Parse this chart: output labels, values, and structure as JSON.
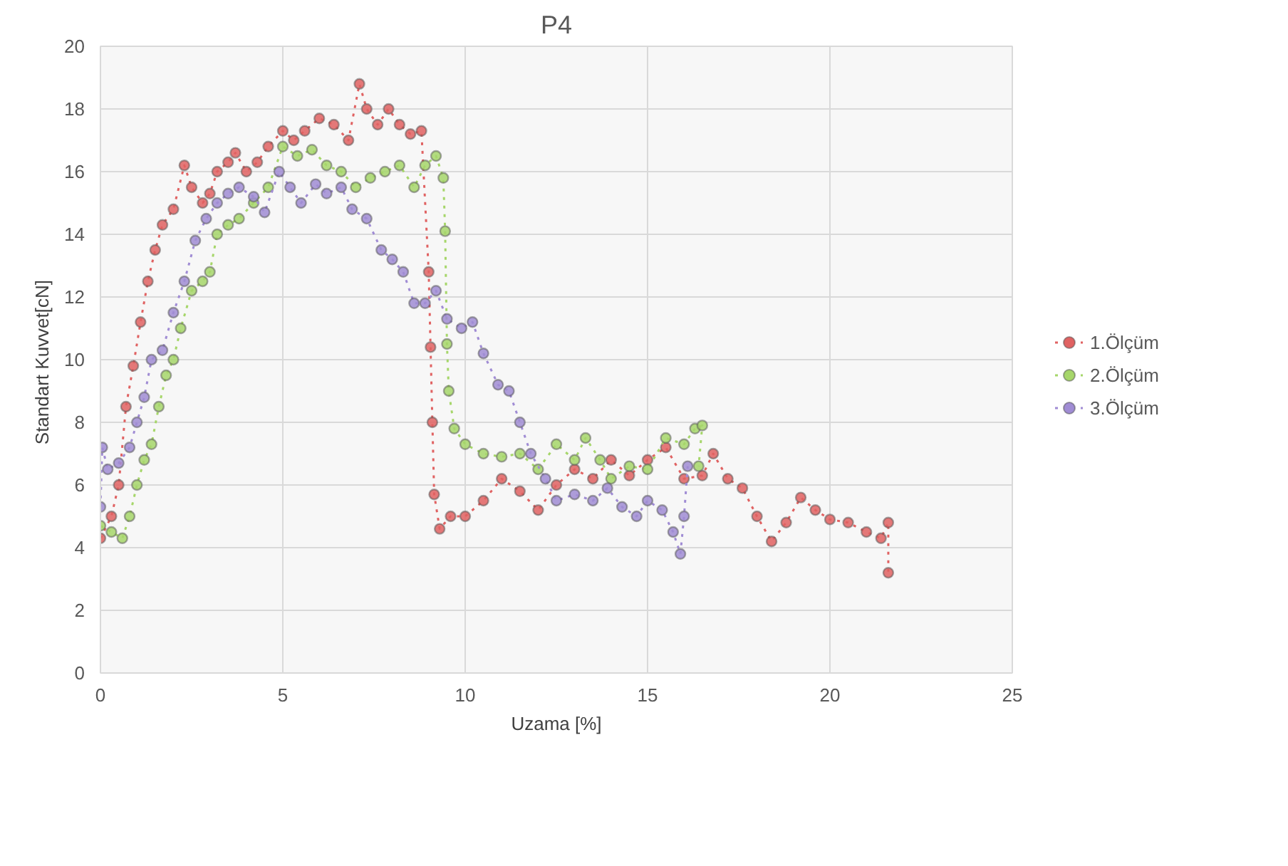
{
  "chart_data": {
    "type": "line",
    "title": "P4",
    "xlabel": "Uzama [%]",
    "ylabel": "Standart  Kuvvet[cN]",
    "xlim": [
      0,
      25
    ],
    "xticks": [
      0,
      5,
      10,
      15,
      20,
      25
    ],
    "ylim": [
      0,
      20
    ],
    "yticks": [
      0,
      2,
      4,
      6,
      8,
      10,
      12,
      14,
      16,
      18,
      20
    ],
    "grid": true,
    "legend": "right",
    "marker": "circle",
    "line_style": "dotted",
    "series": [
      {
        "name": "1.Ölçüm",
        "color": "#e06262",
        "x": [
          0,
          0.3,
          0.5,
          0.7,
          0.9,
          1.1,
          1.3,
          1.5,
          1.7,
          2.0,
          2.3,
          2.5,
          2.8,
          3.0,
          3.2,
          3.5,
          3.7,
          4.0,
          4.3,
          4.6,
          5.0,
          5.3,
          5.6,
          6.0,
          6.4,
          6.8,
          7.1,
          7.3,
          7.6,
          7.9,
          8.2,
          8.5,
          8.8,
          9.0,
          9.05,
          9.1,
          9.15,
          9.3,
          9.6,
          10.0,
          10.5,
          11.0,
          11.5,
          12.0,
          12.5,
          13.0,
          13.5,
          14.0,
          14.5,
          15.0,
          15.5,
          16.0,
          16.5,
          16.8,
          17.2,
          17.6,
          18.0,
          18.4,
          18.8,
          19.2,
          19.6,
          20.0,
          20.5,
          21.0,
          21.4,
          21.6,
          21.6
        ],
        "values": [
          4.3,
          5.0,
          6.0,
          8.5,
          9.8,
          11.2,
          12.5,
          13.5,
          14.3,
          14.8,
          16.2,
          15.5,
          15.0,
          15.3,
          16.0,
          16.3,
          16.6,
          16.0,
          16.3,
          16.8,
          17.3,
          17.0,
          17.3,
          17.7,
          17.5,
          17.0,
          18.8,
          18.0,
          17.5,
          18.0,
          17.5,
          17.2,
          17.3,
          12.8,
          10.4,
          8.0,
          5.7,
          4.6,
          5.0,
          5.0,
          5.5,
          6.2,
          5.8,
          5.2,
          6.0,
          6.5,
          6.2,
          6.8,
          6.3,
          6.8,
          7.2,
          6.2,
          6.3,
          7.0,
          6.2,
          5.9,
          5.0,
          4.2,
          4.8,
          5.6,
          5.2,
          4.9,
          4.8,
          4.5,
          4.3,
          4.8,
          3.2
        ]
      },
      {
        "name": "2.Ölçüm",
        "color": "#a6d66a",
        "x": [
          0,
          0.3,
          0.6,
          0.8,
          1.0,
          1.2,
          1.4,
          1.6,
          1.8,
          2.0,
          2.2,
          2.5,
          2.8,
          3.0,
          3.2,
          3.5,
          3.8,
          4.2,
          4.6,
          5.0,
          5.4,
          5.8,
          6.2,
          6.6,
          7.0,
          7.4,
          7.8,
          8.2,
          8.6,
          8.9,
          9.2,
          9.4,
          9.45,
          9.5,
          9.55,
          9.7,
          10.0,
          10.5,
          11.0,
          11.5,
          12.0,
          12.5,
          13.0,
          13.3,
          13.7,
          14.0,
          14.5,
          15.0,
          15.5,
          16.0,
          16.3,
          16.5,
          16.4
        ],
        "values": [
          4.7,
          4.5,
          4.3,
          5.0,
          6.0,
          6.8,
          7.3,
          8.5,
          9.5,
          10.0,
          11.0,
          12.2,
          12.5,
          12.8,
          14.0,
          14.3,
          14.5,
          15.0,
          15.5,
          16.8,
          16.5,
          16.7,
          16.2,
          16.0,
          15.5,
          15.8,
          16.0,
          16.2,
          15.5,
          16.2,
          16.5,
          15.8,
          14.1,
          10.5,
          9.0,
          7.8,
          7.3,
          7.0,
          6.9,
          7.0,
          6.5,
          7.3,
          6.8,
          7.5,
          6.8,
          6.2,
          6.6,
          6.5,
          7.5,
          7.3,
          7.8,
          7.9,
          6.6
        ]
      },
      {
        "name": "3.Ölçüm",
        "color": "#a08cd4",
        "x": [
          0,
          0.05,
          0.2,
          0.5,
          0.8,
          1.0,
          1.2,
          1.4,
          1.7,
          2.0,
          2.3,
          2.6,
          2.9,
          3.2,
          3.5,
          3.8,
          4.2,
          4.5,
          4.9,
          5.2,
          5.5,
          5.9,
          6.2,
          6.6,
          6.9,
          7.3,
          7.7,
          8.0,
          8.3,
          8.6,
          8.9,
          9.2,
          9.5,
          9.9,
          10.2,
          10.5,
          10.9,
          11.2,
          11.5,
          11.8,
          12.2,
          12.5,
          13.0,
          13.5,
          13.9,
          14.3,
          14.7,
          15.0,
          15.4,
          15.7,
          15.9,
          16.0,
          16.1
        ],
        "values": [
          5.3,
          7.2,
          6.5,
          6.7,
          7.2,
          8.0,
          8.8,
          10.0,
          10.3,
          11.5,
          12.5,
          13.8,
          14.5,
          15.0,
          15.3,
          15.5,
          15.2,
          14.7,
          16.0,
          15.5,
          15.0,
          15.6,
          15.3,
          15.5,
          14.8,
          14.5,
          13.5,
          13.2,
          12.8,
          11.8,
          11.8,
          12.2,
          11.3,
          11.0,
          11.2,
          10.2,
          9.2,
          9.0,
          8.0,
          7.0,
          6.2,
          5.5,
          5.7,
          5.5,
          5.9,
          5.3,
          5.0,
          5.5,
          5.2,
          4.5,
          3.8,
          5.0,
          6.6
        ]
      }
    ]
  }
}
